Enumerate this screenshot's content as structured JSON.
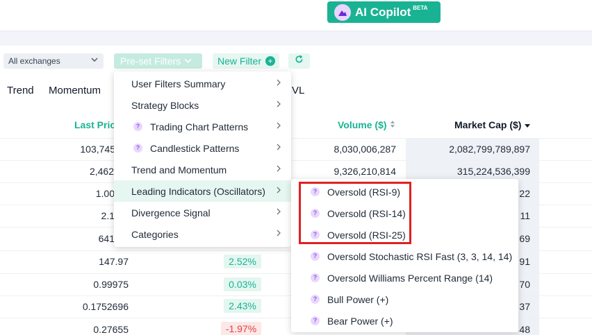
{
  "header": {
    "copilot_label": "AI Copilot",
    "copilot_badge": "BETA"
  },
  "filters": {
    "exchange_value": "All exchanges",
    "preset_label": "Pre-set Filters",
    "new_filter_label": "New Filter",
    "plus_icon": "+"
  },
  "tabs": [
    "Trend",
    "Momentum",
    "VL"
  ],
  "table": {
    "headers": {
      "last_price": "Last Price",
      "volume": "Volume ($)",
      "market_cap": "Market Cap ($)"
    },
    "rows": [
      {
        "price": "103,745",
        "change": "",
        "volume": "8,030,006,287",
        "mcap": "2,082,799,789,897"
      },
      {
        "price": "2,462",
        "change": "",
        "volume": "9,326,210,814",
        "mcap": "315,224,536,399"
      },
      {
        "price": "1.00",
        "change": "",
        "volume": "",
        "mcap": "22"
      },
      {
        "price": "2.1",
        "change": "",
        "volume": "",
        "mcap": "11"
      },
      {
        "price": "641",
        "change": "",
        "volume": "",
        "mcap": "69"
      },
      {
        "price": "147.97",
        "change": "2.52%",
        "volume": "",
        "mcap": "91"
      },
      {
        "price": "0.99975",
        "change": "0.03%",
        "volume": "",
        "mcap": "70"
      },
      {
        "price": "0.1752696",
        "change": "2.43%",
        "volume": "",
        "mcap": "37"
      },
      {
        "price": "0.27655",
        "change": "-1.97%",
        "volume": "",
        "mcap": "48"
      }
    ]
  },
  "menu": {
    "items": [
      {
        "label": "User Filters Summary"
      },
      {
        "label": "Strategy Blocks"
      },
      {
        "label": "Trading Chart Patterns"
      },
      {
        "label": "Candlestick Patterns"
      },
      {
        "label": "Trend and Momentum"
      },
      {
        "label": "Leading Indicators (Oscillators)"
      },
      {
        "label": "Divergence Signal"
      },
      {
        "label": "Categories"
      }
    ],
    "help_glyph": "?"
  },
  "submenu": {
    "items": [
      {
        "label": "Oversold (RSI-9)"
      },
      {
        "label": "Oversold (RSI-14)"
      },
      {
        "label": "Oversold (RSI-25)"
      },
      {
        "label": "Oversold Stochastic RSI Fast (3, 3, 14, 14)"
      },
      {
        "label": "Oversold Williams Percent Range (14)"
      },
      {
        "label": "Bull Power (+)"
      },
      {
        "label": "Bear Power (+)"
      }
    ]
  },
  "colors": {
    "brand": "#19b394",
    "negative": "#e53e3e",
    "highlight_border": "#e02020"
  }
}
